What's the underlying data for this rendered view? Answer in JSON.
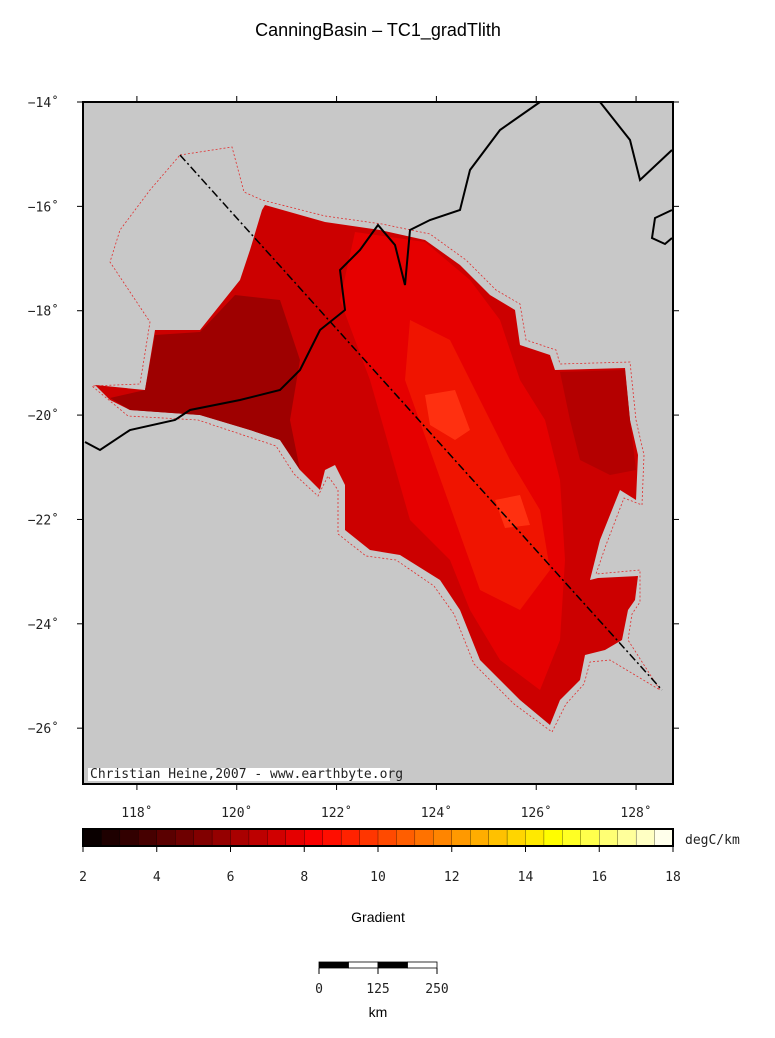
{
  "title": "CanningBasin – TC1_gradTlith",
  "map": {
    "xlim": [
      116.92,
      128.74
    ],
    "ylim": [
      -27.07,
      -14
    ],
    "lat_ticks": [
      {
        "value": -14,
        "label": "−14˚"
      },
      {
        "value": -16,
        "label": "−16˚"
      },
      {
        "value": -18,
        "label": "−18˚"
      },
      {
        "value": -20,
        "label": "−20˚"
      },
      {
        "value": -22,
        "label": "−22˚"
      },
      {
        "value": -24,
        "label": "−24˚"
      },
      {
        "value": -26,
        "label": "−26˚"
      }
    ],
    "lon_ticks": [
      {
        "value": 118,
        "label": "118˚"
      },
      {
        "value": 120,
        "label": "120˚"
      },
      {
        "value": 122,
        "label": "122˚"
      },
      {
        "value": 124,
        "label": "124˚"
      },
      {
        "value": 126,
        "label": "126˚"
      },
      {
        "value": 128,
        "label": "128˚"
      }
    ],
    "credit": "Christian Heine,2007 - www.earthbyte.org"
  },
  "colorbar": {
    "range": [
      2,
      18
    ],
    "ticks": [
      2,
      4,
      6,
      8,
      10,
      12,
      14,
      16,
      18
    ],
    "unit": "degC/km",
    "label": "Gradient"
  },
  "scalebar": {
    "ticks": [
      0,
      125,
      250
    ],
    "unit": "km"
  }
}
